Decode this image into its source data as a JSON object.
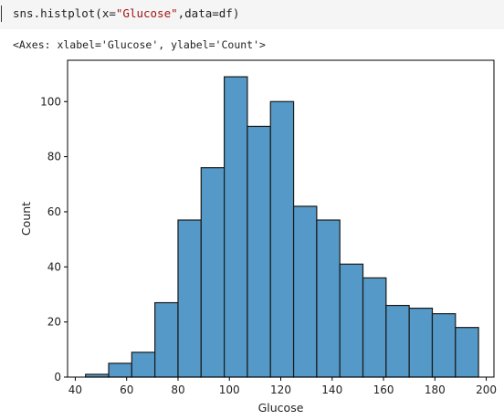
{
  "code_cell": {
    "code_prefix": "sns.histplot(x=",
    "code_string": "\"Glucose\"",
    "code_suffix": ",data=df)"
  },
  "output": {
    "repr": "<Axes: xlabel='Glucose', ylabel='Count'>"
  },
  "chart_data": {
    "type": "bar",
    "title": "",
    "xlabel": "Glucose",
    "ylabel": "Count",
    "xlim": [
      37,
      203
    ],
    "ylim": [
      0,
      115
    ],
    "x_ticks": [
      40,
      60,
      80,
      100,
      120,
      140,
      160,
      180,
      200
    ],
    "y_ticks": [
      0,
      20,
      40,
      60,
      80,
      100
    ],
    "bin_edges": [
      44,
      53,
      62,
      71,
      80,
      89,
      98,
      107,
      116,
      125,
      134,
      143,
      152,
      161,
      170,
      179,
      188,
      197
    ],
    "counts": [
      1,
      5,
      9,
      27,
      57,
      76,
      109,
      91,
      100,
      62,
      57,
      41,
      36,
      26,
      25,
      23,
      18
    ],
    "bar_color": "#5499c7",
    "edge_color": "#1a1a1a",
    "grid": false
  }
}
